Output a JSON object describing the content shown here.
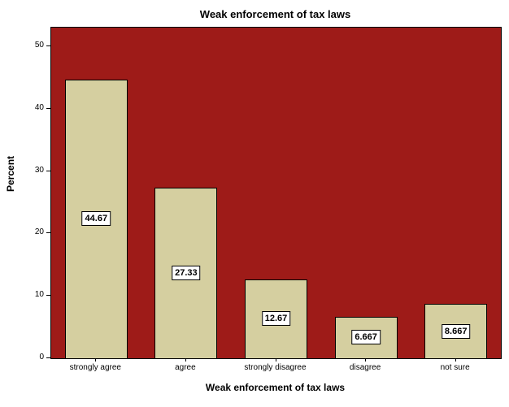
{
  "title": "Weak enforcement of tax laws",
  "chart_data": {
    "type": "bar",
    "title": "Weak enforcement of tax laws",
    "xlabel": "Weak enforcement of tax laws",
    "ylabel": "Percent",
    "categories": [
      "strongly agree",
      "agree",
      "strongly disagree",
      "disagree",
      "not sure"
    ],
    "values": [
      44.67,
      27.33,
      12.67,
      6.667,
      8.667
    ],
    "value_labels": [
      "44.67",
      "27.33",
      "12.67",
      "6.667",
      "8.667"
    ],
    "ylim": [
      0,
      53
    ],
    "yticks": [
      0,
      10,
      20,
      30,
      40,
      50
    ],
    "grid": false,
    "legend": "none",
    "colors": {
      "plot_background": "#9e1b18",
      "bar_fill": "#d5cfa0",
      "bar_border": "#000000",
      "label_box_background": "#ffffff"
    }
  }
}
